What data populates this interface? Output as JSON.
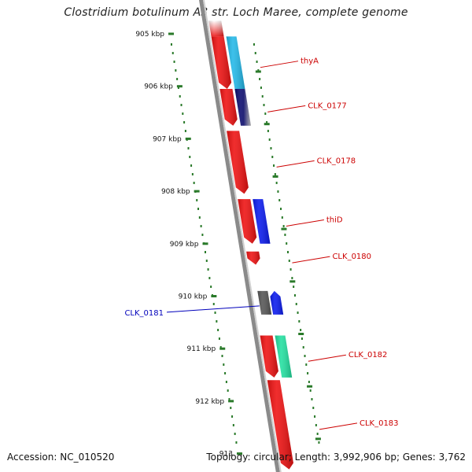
{
  "title": "Clostridium botulinum A3 str. Loch Maree, complete genome",
  "footer": {
    "accession": "Accession: NC_010520",
    "summary": "Topology: circular; Length: 3,992,906 bp; Genes: 3,762"
  },
  "colors": {
    "backbone": "#8a8a8a",
    "forward_red": "#ee1111",
    "tick": "#2a7a2a",
    "label_red": "#cc0000",
    "label_blue": "#0000bb",
    "light_blue": "#22b8e8",
    "navy": "#0a0a6e",
    "blue": "#0a1aee",
    "green": "#22e0a0",
    "dark_gray": "#555555"
  },
  "ruler": [
    {
      "kbp": 905,
      "label": "905 kbp"
    },
    {
      "kbp": 906,
      "label": "906 kbp"
    },
    {
      "kbp": 907,
      "label": "907 kbp"
    },
    {
      "kbp": 908,
      "label": "908 kbp"
    },
    {
      "kbp": 909,
      "label": "909 kbp"
    },
    {
      "kbp": 910,
      "label": "910 kbp"
    },
    {
      "kbp": 911,
      "label": "911 kbp"
    },
    {
      "kbp": 912,
      "label": "912 kbp"
    },
    {
      "kbp": 913,
      "label": "913"
    }
  ],
  "genes": [
    {
      "label": "",
      "start": 904.75,
      "end": 905.05,
      "color": "#ee1111",
      "strand": "outer",
      "fade": "top"
    },
    {
      "label": "",
      "start": 905.05,
      "end": 906.05,
      "color": "#ee1111",
      "strand": "outer",
      "arrow": true
    },
    {
      "label": "thyA",
      "start": 905.05,
      "end": 906.05,
      "color": "#22b8e8",
      "strand": "inner",
      "label_color": "#cc0000"
    },
    {
      "label": "",
      "start": 906.05,
      "end": 906.75,
      "color": "#ee1111",
      "strand": "outer",
      "arrow": true
    },
    {
      "label": "CLK_0177",
      "start": 906.05,
      "end": 906.75,
      "color": "#0a0a6e",
      "strand": "inner",
      "label_color": "#cc0000",
      "fade": "right"
    },
    {
      "label": "CLK_0178",
      "start": 906.85,
      "end": 908.05,
      "color": "#ee1111",
      "strand": "outer",
      "arrow": true,
      "label_color": "#cc0000"
    },
    {
      "label": "",
      "start": 908.15,
      "end": 909.0,
      "color": "#ee1111",
      "strand": "outer",
      "arrow": true
    },
    {
      "label": "thiD",
      "start": 908.15,
      "end": 909.0,
      "color": "#0a1aee",
      "strand": "inner",
      "label_color": "#cc0000"
    },
    {
      "label": "CLK_0180",
      "start": 909.15,
      "end": 909.4,
      "color": "#ee1111",
      "strand": "outer",
      "arrow": true,
      "label_color": "#cc0000"
    },
    {
      "label": "CLK_0181",
      "start": 909.9,
      "end": 910.35,
      "color": "#0a1aee",
      "strand": "left",
      "arrow_up": true,
      "label_color": "#0000bb"
    },
    {
      "label": "",
      "start": 909.9,
      "end": 910.35,
      "color": "#555555",
      "strand": "left_outer"
    },
    {
      "label": "",
      "start": 910.75,
      "end": 911.55,
      "color": "#ee1111",
      "strand": "outer",
      "arrow": true
    },
    {
      "label": "CLK_0182",
      "start": 910.75,
      "end": 911.55,
      "color": "#22e0a0",
      "strand": "inner",
      "label_color": "#cc0000"
    },
    {
      "label": "CLK_0183",
      "start": 911.6,
      "end": 913.3,
      "color": "#ee1111",
      "strand": "outer",
      "arrow": true,
      "label_color": "#cc0000"
    }
  ]
}
